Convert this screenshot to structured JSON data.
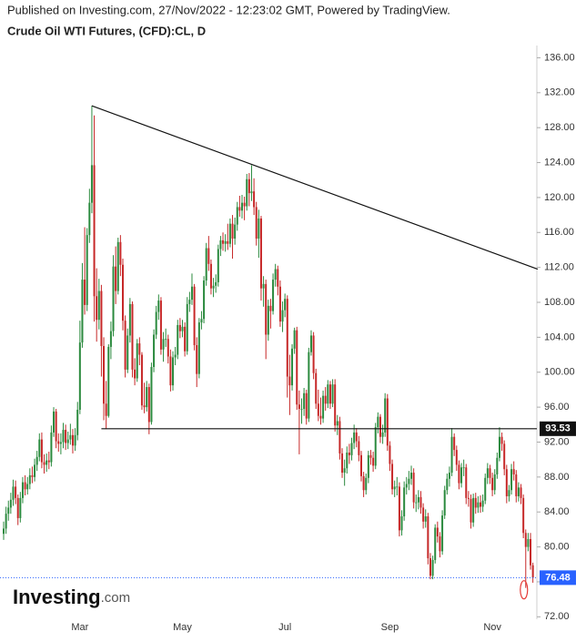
{
  "chart_data": {
    "type": "candlestick",
    "header": "Published on Investing.com, 27/Nov/2022 - 12:23:02 GMT, Powered by TradingView.",
    "title": "Crude Oil WTI Futures, (CFD):CL, D",
    "watermark": {
      "main": "Investing",
      "suffix": ".com"
    },
    "up_color": "#2b8a3e",
    "down_color": "#c62828",
    "categories": [
      null,
      null,
      null,
      null,
      null,
      null,
      null,
      null,
      null,
      null,
      null,
      null,
      null,
      null,
      null,
      null,
      null,
      null,
      null,
      null,
      null,
      null,
      null,
      null,
      null,
      null,
      null,
      null,
      null,
      null,
      null,
      null,
      "Mar",
      null,
      null,
      null,
      null,
      null,
      null,
      null,
      null,
      null,
      null,
      null,
      null,
      null,
      null,
      null,
      null,
      null,
      null,
      null,
      null,
      null,
      null,
      null,
      null,
      null,
      null,
      null,
      null,
      null,
      null,
      null,
      null,
      null,
      null,
      null,
      null,
      null,
      null,
      null,
      null,
      null,
      null,
      "May",
      null,
      null,
      null,
      null,
      null,
      null,
      null,
      null,
      null,
      null,
      null,
      null,
      null,
      null,
      null,
      null,
      null,
      null,
      null,
      null,
      null,
      null,
      null,
      null,
      null,
      null,
      null,
      null,
      null,
      null,
      null,
      null,
      null,
      null,
      null,
      null,
      null,
      null,
      null,
      null,
      null,
      null,
      "Jul",
      null,
      null,
      null,
      null,
      null,
      null,
      null,
      null,
      null,
      null,
      null,
      null,
      null,
      null,
      null,
      null,
      null,
      null,
      null,
      null,
      null,
      null,
      null,
      null,
      null,
      null,
      null,
      null,
      null,
      null,
      null,
      null,
      null,
      null,
      null,
      null,
      null,
      null,
      null,
      null,
      null,
      null,
      null,
      "Sep",
      null,
      null,
      null,
      null,
      null,
      null,
      null,
      null,
      null,
      null,
      null,
      null,
      null,
      null,
      null,
      null,
      null,
      null,
      null,
      null,
      null,
      null,
      null,
      null,
      null,
      null,
      null,
      null,
      null,
      null,
      null,
      null,
      null,
      null,
      null,
      null,
      null,
      null,
      null,
      null,
      null,
      null,
      "Nov",
      null,
      null,
      null,
      null,
      null,
      null,
      null,
      null,
      null,
      null,
      null,
      null,
      null,
      null,
      null,
      null,
      null
    ],
    "open": [
      81.5,
      82.1,
      83.8,
      84.5,
      85.4,
      86.9,
      85.6,
      83.3,
      85.6,
      87.4,
      86.6,
      87.2,
      88.2,
      88.0,
      89.4,
      90.3,
      92.3,
      89.7,
      89.4,
      89.9,
      89.7,
      93.1,
      95.5,
      92.1,
      91.8,
      92.0,
      93.4,
      91.9,
      92.3,
      92.8,
      91.6,
      92.8,
      95.7,
      103.4,
      110.6,
      107.7,
      115.7,
      119.4,
      123.7,
      108.7,
      106.0,
      109.3,
      103.0,
      96.4,
      95.0,
      102.9,
      104.7,
      112.1,
      109.3,
      114.9,
      112.3,
      105.9,
      100.3,
      104.2,
      107.8,
      100.3,
      99.3,
      103.3,
      102.0,
      96.2,
      96.0,
      98.3,
      94.3,
      100.6,
      104.3,
      106.9,
      108.2,
      102.6,
      103.8,
      103.8,
      101.8,
      98.5,
      101.7,
      102.0,
      105.4,
      104.7,
      105.2,
      102.4,
      107.8,
      108.3,
      109.8,
      103.1,
      99.8,
      105.7,
      106.1,
      110.5,
      114.2,
      112.4,
      109.6,
      109.9,
      110.3,
      114.1,
      115.1,
      114.7,
      115.0,
      114.7,
      117.0,
      115.3,
      116.9,
      118.9,
      118.5,
      119.4,
      119.0,
      122.1,
      120.5,
      120.7,
      118.9,
      115.3,
      117.6,
      109.6,
      110.1,
      104.3,
      107.6,
      107.0,
      110.6,
      111.8,
      109.8,
      105.8,
      107.1,
      108.4,
      99.5,
      98.5,
      102.7,
      104.8,
      96.3,
      95.8,
      95.8,
      97.6,
      94.7,
      102.3,
      104.2,
      99.9,
      96.4,
      95.0,
      94.7,
      97.3,
      96.4,
      98.6,
      96.4,
      98.6,
      93.9,
      94.4,
      90.7,
      88.5,
      89.0,
      90.8,
      90.5,
      91.9,
      93.1,
      92.1,
      90.5,
      88.1,
      86.5,
      87.9,
      90.5,
      90.2,
      89.3,
      93.7,
      94.9,
      92.6,
      93.1,
      97.0,
      91.6,
      89.5,
      86.6,
      86.9,
      86.9,
      81.9,
      83.5,
      86.8,
      87.2,
      87.8,
      88.5,
      85.1,
      85.1,
      85.7,
      84.5,
      82.9,
      83.5,
      78.7,
      76.7,
      78.5,
      82.2,
      81.2,
      79.5,
      83.6,
      86.5,
      87.8,
      88.5,
      92.6,
      91.1,
      89.4,
      87.3,
      89.1,
      89.1,
      85.6,
      85.5,
      82.8,
      85.6,
      84.5,
      85.1,
      84.6,
      85.3,
      87.9,
      89.0,
      87.9,
      86.5,
      88.3,
      90.2,
      92.6,
      91.8,
      88.9,
      85.8,
      86.5,
      88.9,
      88.3,
      85.8,
      86.8,
      85.6,
      81.6,
      80.0,
      80.9,
      77.9
    ],
    "high": [
      82.9,
      84.6,
      85.3,
      86.2,
      87.7,
      87.6,
      86.0,
      86.3,
      88.0,
      88.2,
      88.0,
      89.0,
      89.2,
      90.1,
      91.0,
      93.0,
      93.1,
      90.6,
      90.7,
      90.9,
      93.9,
      96.0,
      95.8,
      93.0,
      93.0,
      94.2,
      94.0,
      93.2,
      94.1,
      93.5,
      93.6,
      96.6,
      105.9,
      112.5,
      116.6,
      116.5,
      121.0,
      130.5,
      129.4,
      111.9,
      110.7,
      110.0,
      104.0,
      99.0,
      103.2,
      105.8,
      113.4,
      114.4,
      115.4,
      115.7,
      113.0,
      106.5,
      105.0,
      108.5,
      108.1,
      101.6,
      103.8,
      104.0,
      102.3,
      98.8,
      99.0,
      98.7,
      101.1,
      104.9,
      107.6,
      108.9,
      108.6,
      104.6,
      105.0,
      104.3,
      102.6,
      102.4,
      102.9,
      106.0,
      106.2,
      106.0,
      105.7,
      108.6,
      109.2,
      111.3,
      110.1,
      104.0,
      106.2,
      107.0,
      111.0,
      114.8,
      115.6,
      112.9,
      110.8,
      111.2,
      114.6,
      115.6,
      116.0,
      115.8,
      117.0,
      117.6,
      118.0,
      117.7,
      119.5,
      120.2,
      120.3,
      120.1,
      122.7,
      122.8,
      123.7,
      122.2,
      119.5,
      118.6,
      117.9,
      111.0,
      110.6,
      108.3,
      108.4,
      111.3,
      112.4,
      112.2,
      110.5,
      108.1,
      109.0,
      108.8,
      102.0,
      103.2,
      105.1,
      105.2,
      97.9,
      97.0,
      98.2,
      98.0,
      102.8,
      104.8,
      104.6,
      100.4,
      98.0,
      97.1,
      97.9,
      98.3,
      99.1,
      99.0,
      99.2,
      99.2,
      95.1,
      94.9,
      91.3,
      90.0,
      91.5,
      91.8,
      92.5,
      94.0,
      93.6,
      92.7,
      91.0,
      88.6,
      88.4,
      91.0,
      91.1,
      90.9,
      94.2,
      95.4,
      95.2,
      94.0,
      97.6,
      97.5,
      92.1,
      90.0,
      87.6,
      88.0,
      87.4,
      84.2,
      87.5,
      88.0,
      88.7,
      89.3,
      89.0,
      86.0,
      86.5,
      86.4,
      85.0,
      84.3,
      83.9,
      79.3,
      79.0,
      82.6,
      82.9,
      81.7,
      84.2,
      87.0,
      88.4,
      89.2,
      93.6,
      93.0,
      91.6,
      89.9,
      89.6,
      90.0,
      89.5,
      86.4,
      86.0,
      86.1,
      86.2,
      85.8,
      85.9,
      86.0,
      88.4,
      89.6,
      89.4,
      88.5,
      88.9,
      90.8,
      93.7,
      93.1,
      92.2,
      89.4,
      87.1,
      89.5,
      89.8,
      88.8,
      87.4,
      87.2,
      86.0,
      82.0,
      81.6,
      81.6,
      78.2
    ],
    "low": [
      80.8,
      81.5,
      83.0,
      83.8,
      84.7,
      84.9,
      82.5,
      82.8,
      85.0,
      85.9,
      86.0,
      86.6,
      87.3,
      87.5,
      88.7,
      89.8,
      89.0,
      88.4,
      88.6,
      88.9,
      89.2,
      92.6,
      91.3,
      90.9,
      90.6,
      91.3,
      91.1,
      91.2,
      91.7,
      90.7,
      91.0,
      92.2,
      95.2,
      102.8,
      106.6,
      107.0,
      114.8,
      118.2,
      105.8,
      103.5,
      104.9,
      99.5,
      94.5,
      93.5,
      94.8,
      101.5,
      104.1,
      107.8,
      108.9,
      111.0,
      104.8,
      99.4,
      99.9,
      103.4,
      99.4,
      98.5,
      98.9,
      100.8,
      95.7,
      95.3,
      95.5,
      92.9,
      94.0,
      100.0,
      103.8,
      106.0,
      102.0,
      101.2,
      102.9,
      101.0,
      97.8,
      97.9,
      100.8,
      101.5,
      103.9,
      104.0,
      101.8,
      102.0,
      106.9,
      107.7,
      102.5,
      98.3,
      99.3,
      104.9,
      105.6,
      109.9,
      111.6,
      108.9,
      108.6,
      109.1,
      109.8,
      113.3,
      113.9,
      113.8,
      114.0,
      114.3,
      113.0,
      114.6,
      116.2,
      117.8,
      117.6,
      117.4,
      118.5,
      119.0,
      119.6,
      118.0,
      114.5,
      113.1,
      108.2,
      107.5,
      101.5,
      103.6,
      105.0,
      106.6,
      109.8,
      108.8,
      105.2,
      104.6,
      106.3,
      97.1,
      95.1,
      97.9,
      102.1,
      95.7,
      90.6,
      94.1,
      95.0,
      94.0,
      94.3,
      101.9,
      99.2,
      95.8,
      94.4,
      94.0,
      94.2,
      95.6,
      95.9,
      95.8,
      96.0,
      93.2,
      92.8,
      90.0,
      87.9,
      87.0,
      88.4,
      89.5,
      89.9,
      91.2,
      91.4,
      89.8,
      87.5,
      85.7,
      86.0,
      87.3,
      89.4,
      88.6,
      88.9,
      93.0,
      91.9,
      91.8,
      92.6,
      91.0,
      88.7,
      86.0,
      85.7,
      85.9,
      81.2,
      81.3,
      83.0,
      86.0,
      86.5,
      87.1,
      84.4,
      84.0,
      84.3,
      83.8,
      82.1,
      82.2,
      78.0,
      76.3,
      76.3,
      78.1,
      80.5,
      78.8,
      79.1,
      83.2,
      86.0,
      86.9,
      88.1,
      90.4,
      88.7,
      86.6,
      86.8,
      88.1,
      84.9,
      84.6,
      82.1,
      82.3,
      83.8,
      83.9,
      83.9,
      84.0,
      84.9,
      87.2,
      87.2,
      85.8,
      86.0,
      87.8,
      89.8,
      91.0,
      88.2,
      85.0,
      85.2,
      86.0,
      87.6,
      85.1,
      85.2,
      84.9,
      81.0,
      75.3,
      79.5,
      77.4,
      75.9
    ],
    "close": [
      82.1,
      83.8,
      84.5,
      85.4,
      86.9,
      85.6,
      83.3,
      85.6,
      87.4,
      86.6,
      87.2,
      88.2,
      88.0,
      89.4,
      90.3,
      92.3,
      89.7,
      89.4,
      89.9,
      89.7,
      93.1,
      95.5,
      92.1,
      91.8,
      92.0,
      93.4,
      91.9,
      92.3,
      92.8,
      91.6,
      92.8,
      95.7,
      103.4,
      110.6,
      107.7,
      115.7,
      119.4,
      123.7,
      108.7,
      106.0,
      109.3,
      103.0,
      96.4,
      95.0,
      102.9,
      104.7,
      112.1,
      109.3,
      114.9,
      112.3,
      105.9,
      100.3,
      104.2,
      107.8,
      100.3,
      99.3,
      103.3,
      102.0,
      96.2,
      96.0,
      98.3,
      94.3,
      100.6,
      104.3,
      106.9,
      108.2,
      102.6,
      103.8,
      103.8,
      101.8,
      98.5,
      101.7,
      102.0,
      105.4,
      104.7,
      105.2,
      102.4,
      107.8,
      108.3,
      109.8,
      103.1,
      99.8,
      105.7,
      106.1,
      110.5,
      114.2,
      112.4,
      109.6,
      109.9,
      110.3,
      114.1,
      115.1,
      114.7,
      115.0,
      114.7,
      117.0,
      115.3,
      116.9,
      118.9,
      118.5,
      119.4,
      119.0,
      122.1,
      120.5,
      120.7,
      118.9,
      115.3,
      117.6,
      109.6,
      110.1,
      104.3,
      107.6,
      107.0,
      110.6,
      111.8,
      109.8,
      105.8,
      107.1,
      108.4,
      99.5,
      98.5,
      102.7,
      104.8,
      96.3,
      95.8,
      95.8,
      97.6,
      94.7,
      102.3,
      104.2,
      99.9,
      96.4,
      95.0,
      94.7,
      97.3,
      96.4,
      98.6,
      96.4,
      98.6,
      93.9,
      94.4,
      90.7,
      88.5,
      89.0,
      90.8,
      90.5,
      91.9,
      93.1,
      92.1,
      90.5,
      88.1,
      86.5,
      87.9,
      90.5,
      90.2,
      89.3,
      93.7,
      94.9,
      92.6,
      93.1,
      97.0,
      91.6,
      89.5,
      86.6,
      86.9,
      86.9,
      81.9,
      83.5,
      86.8,
      87.2,
      87.8,
      88.5,
      85.1,
      85.1,
      85.7,
      84.5,
      82.9,
      83.5,
      78.7,
      76.7,
      78.5,
      82.2,
      81.2,
      79.5,
      83.6,
      86.5,
      87.8,
      88.5,
      92.6,
      91.1,
      89.4,
      87.3,
      89.1,
      89.1,
      85.6,
      85.5,
      82.8,
      85.6,
      84.5,
      85.1,
      84.6,
      85.3,
      87.9,
      89.0,
      87.9,
      86.5,
      88.3,
      90.2,
      92.6,
      91.8,
      88.9,
      85.8,
      86.5,
      88.9,
      88.3,
      85.8,
      86.8,
      85.6,
      81.6,
      80.0,
      80.9,
      77.9,
      76.48
    ],
    "ylim": [
      71.2,
      137.4
    ],
    "yticks": [
      {
        "value": 72,
        "label": "72.00"
      },
      {
        "value": 76,
        "label": "76.00"
      },
      {
        "value": 80,
        "label": "80.00"
      },
      {
        "value": 84,
        "label": "84.00"
      },
      {
        "value": 88,
        "label": "88.00"
      },
      {
        "value": 92,
        "label": "92.00"
      },
      {
        "value": 96,
        "label": "96.00"
      },
      {
        "value": 100,
        "label": "100.00"
      },
      {
        "value": 104,
        "label": "104.00"
      },
      {
        "value": 108,
        "label": "108.00"
      },
      {
        "value": 112,
        "label": "112.00"
      },
      {
        "value": 116,
        "label": "116.00"
      },
      {
        "value": 120,
        "label": "120.00"
      },
      {
        "value": 124,
        "label": "124.00"
      },
      {
        "value": 128,
        "label": "128.00"
      },
      {
        "value": 132,
        "label": "132.00"
      },
      {
        "value": 136,
        "label": "136.00"
      }
    ],
    "grid": false,
    "trendline": {
      "x": [
        37,
        224
      ],
      "y": [
        130.5,
        111.8
      ]
    },
    "support_level": {
      "x": 41,
      "value": 93.53
    },
    "last_price": 76.48,
    "highlight": {
      "x": 219,
      "y": 75.3
    }
  }
}
